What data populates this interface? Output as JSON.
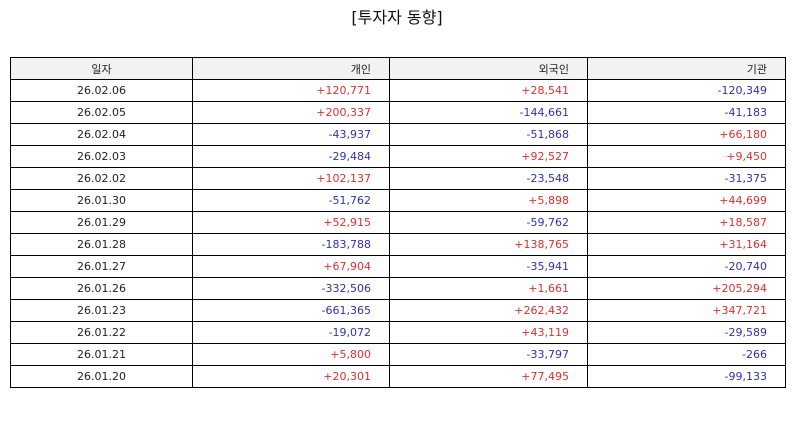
{
  "title": "[투자자 동향]",
  "colors": {
    "positive": "#e03030",
    "negative": "#3030b8",
    "header_bg": "#f2f2f2"
  },
  "table": {
    "columns": [
      "일자",
      "개인",
      "외국인",
      "기관"
    ],
    "rows": [
      [
        "26.02.06",
        "+120,771",
        "+28,541",
        "-120,349"
      ],
      [
        "26.02.05",
        "+200,337",
        "-144,661",
        "-41,183"
      ],
      [
        "26.02.04",
        "-43,937",
        "-51,868",
        "+66,180"
      ],
      [
        "26.02.03",
        "-29,484",
        "+92,527",
        "+9,450"
      ],
      [
        "26.02.02",
        "+102,137",
        "-23,548",
        "-31,375"
      ],
      [
        "26.01.30",
        "-51,762",
        "+5,898",
        "+44,699"
      ],
      [
        "26.01.29",
        "+52,915",
        "-59,762",
        "+18,587"
      ],
      [
        "26.01.28",
        "-183,788",
        "+138,765",
        "+31,164"
      ],
      [
        "26.01.27",
        "+67,904",
        "-35,941",
        "-20,740"
      ],
      [
        "26.01.26",
        "-332,506",
        "+1,661",
        "+205,294"
      ],
      [
        "26.01.23",
        "-661,365",
        "+262,432",
        "+347,721"
      ],
      [
        "26.01.22",
        "-19,072",
        "+43,119",
        "-29,589"
      ],
      [
        "26.01.21",
        "+5,800",
        "-33,797",
        "-266"
      ],
      [
        "26.01.20",
        "+20,301",
        "+77,495",
        "-99,133"
      ]
    ]
  }
}
